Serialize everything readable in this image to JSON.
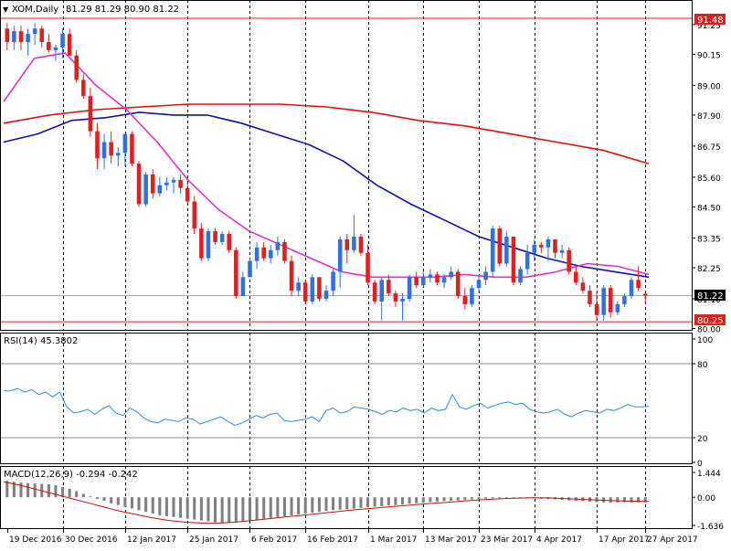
{
  "header": {
    "symbol_label": "XOM,Daily",
    "ohlc_label": "81.29 81.29 80.90 81.22"
  },
  "rsi_header": "RSI(14) 45.3802",
  "macd_header": "MACD(12,26,9) -0.294 -0.242",
  "price_labels": {
    "upper_line": "91.48",
    "current": "81.22",
    "lower_line": "80.25"
  },
  "colors": {
    "bull": "#3070e0",
    "bear": "#e02020",
    "ma_fast": "#e030d0",
    "ma_mid": "#1010b0",
    "ma_slow": "#e01010",
    "rsi_line": "#3a8ad8",
    "macd_hist": "#808080",
    "macd_signal": "#c01010",
    "level_line": "#e02020"
  },
  "chart_data": [
    {
      "type": "candlestick",
      "title": "XOM,Daily",
      "ylim": [
        80.0,
        91.48
      ],
      "y_ticks": [
        "91.25",
        "90.15",
        "89.00",
        "87.90",
        "86.75",
        "85.60",
        "84.50",
        "83.35",
        "82.25",
        "81.10",
        "80.00"
      ],
      "x_ticks": [
        "19 Dec 2016",
        "30 Dec 2016",
        "12 Jan 2017",
        "25 Jan 2017",
        "6 Feb 2017",
        "16 Feb 2017",
        "1 Mar 2017",
        "13 Mar 2017",
        "23 Mar 2017",
        "4 Apr 2017",
        "17 Apr 2017",
        "27 Apr 2017"
      ],
      "horizontal_lines": [
        91.48,
        80.25
      ],
      "current_price": 81.22,
      "candles": [
        [
          91.1,
          91.3,
          90.3,
          90.6
        ],
        [
          90.6,
          91.2,
          90.3,
          91.0
        ],
        [
          91.0,
          91.2,
          90.3,
          90.6
        ],
        [
          90.6,
          91.1,
          90.1,
          90.9
        ],
        [
          90.9,
          91.3,
          90.5,
          91.1
        ],
        [
          91.1,
          91.2,
          90.4,
          90.6
        ],
        [
          90.6,
          90.9,
          90.2,
          90.3
        ],
        [
          90.3,
          90.5,
          89.9,
          90.4
        ],
        [
          90.4,
          91.1,
          90.0,
          90.9
        ],
        [
          90.9,
          91.1,
          90.1,
          90.1
        ],
        [
          90.1,
          90.3,
          89.1,
          89.2
        ],
        [
          89.2,
          89.4,
          88.5,
          88.6
        ],
        [
          88.6,
          88.9,
          87.1,
          87.3
        ],
        [
          87.3,
          87.6,
          85.9,
          86.3
        ],
        [
          86.3,
          87.2,
          85.9,
          86.9
        ],
        [
          86.9,
          87.3,
          86.1,
          86.4
        ],
        [
          86.4,
          86.7,
          86.0,
          86.5
        ],
        [
          86.5,
          87.2,
          86.0,
          87.2
        ],
        [
          87.2,
          87.3,
          86.0,
          86.1
        ],
        [
          86.1,
          86.2,
          84.5,
          84.6
        ],
        [
          84.6,
          85.8,
          84.5,
          85.7
        ],
        [
          85.7,
          85.9,
          84.8,
          85.0
        ],
        [
          85.0,
          85.6,
          84.9,
          85.3
        ],
        [
          85.3,
          85.6,
          85.1,
          85.4
        ],
        [
          85.4,
          85.6,
          85.0,
          85.5
        ],
        [
          85.5,
          85.7,
          85.0,
          85.2
        ],
        [
          85.2,
          85.4,
          84.6,
          84.7
        ],
        [
          84.7,
          84.9,
          83.5,
          83.7
        ],
        [
          83.7,
          83.9,
          82.5,
          82.6
        ],
        [
          82.6,
          83.7,
          82.5,
          83.6
        ],
        [
          83.6,
          83.7,
          83.1,
          83.2
        ],
        [
          83.2,
          83.6,
          83.1,
          83.5
        ],
        [
          83.5,
          83.6,
          82.8,
          82.9
        ],
        [
          82.9,
          83.0,
          81.1,
          81.2
        ],
        [
          81.2,
          82.1,
          81.2,
          81.9
        ],
        [
          81.9,
          82.6,
          81.9,
          82.5
        ],
        [
          82.5,
          83.2,
          82.2,
          83.0
        ],
        [
          83.0,
          83.2,
          82.5,
          82.6
        ],
        [
          82.6,
          83.1,
          82.4,
          82.9
        ],
        [
          82.9,
          83.4,
          82.7,
          83.2
        ],
        [
          83.2,
          83.3,
          82.4,
          82.5
        ],
        [
          82.5,
          82.7,
          81.2,
          81.4
        ],
        [
          81.4,
          81.9,
          81.2,
          81.7
        ],
        [
          81.7,
          81.8,
          80.9,
          81.0
        ],
        [
          81.0,
          82.0,
          80.9,
          81.9
        ],
        [
          81.9,
          81.9,
          81.0,
          81.1
        ],
        [
          81.1,
          81.6,
          81.0,
          81.4
        ],
        [
          81.4,
          82.2,
          81.2,
          82.1
        ],
        [
          82.1,
          83.4,
          81.5,
          83.3
        ],
        [
          83.3,
          83.5,
          82.4,
          82.9
        ],
        [
          82.9,
          84.2,
          82.8,
          83.4
        ],
        [
          83.4,
          83.5,
          82.7,
          82.8
        ],
        [
          82.8,
          83.1,
          81.6,
          81.7
        ],
        [
          81.7,
          81.8,
          80.9,
          81.0
        ],
        [
          81.0,
          81.9,
          80.3,
          81.8
        ],
        [
          81.8,
          82.0,
          81.2,
          81.3
        ],
        [
          81.3,
          81.4,
          80.8,
          81.0
        ],
        [
          81.0,
          81.3,
          80.3,
          81.1
        ],
        [
          81.1,
          82.0,
          81.0,
          81.9
        ],
        [
          81.9,
          82.1,
          81.5,
          81.6
        ],
        [
          81.6,
          82.1,
          81.5,
          81.9
        ],
        [
          81.9,
          82.2,
          81.7,
          82.0
        ],
        [
          82.0,
          82.1,
          81.6,
          81.7
        ],
        [
          81.7,
          82.0,
          81.5,
          81.9
        ],
        [
          81.9,
          82.3,
          81.8,
          82.1
        ],
        [
          82.1,
          82.2,
          81.1,
          81.2
        ],
        [
          81.2,
          81.5,
          80.7,
          80.9
        ],
        [
          80.9,
          81.6,
          80.8,
          81.5
        ],
        [
          81.5,
          82.0,
          81.3,
          81.8
        ],
        [
          81.8,
          82.3,
          81.6,
          82.1
        ],
        [
          82.1,
          83.8,
          81.9,
          83.7
        ],
        [
          83.7,
          83.8,
          82.3,
          82.4
        ],
        [
          82.4,
          83.6,
          82.3,
          83.4
        ],
        [
          83.4,
          83.4,
          81.6,
          81.7
        ],
        [
          81.7,
          82.3,
          81.6,
          82.2
        ],
        [
          82.2,
          83.1,
          82.0,
          82.8
        ],
        [
          82.8,
          83.3,
          82.5,
          83.1
        ],
        [
          83.1,
          83.2,
          82.8,
          83.0
        ],
        [
          83.0,
          83.4,
          82.5,
          83.3
        ],
        [
          83.3,
          83.3,
          82.6,
          82.8
        ],
        [
          82.8,
          83.1,
          82.6,
          82.9
        ],
        [
          82.9,
          83.0,
          82.0,
          82.1
        ],
        [
          82.1,
          82.3,
          81.6,
          81.7
        ],
        [
          81.7,
          81.9,
          81.3,
          81.4
        ],
        [
          81.4,
          81.6,
          80.8,
          80.9
        ],
        [
          80.9,
          81.4,
          80.3,
          80.5
        ],
        [
          80.5,
          81.6,
          80.3,
          81.5
        ],
        [
          81.5,
          81.6,
          80.4,
          80.6
        ],
        [
          80.6,
          81.0,
          80.5,
          80.9
        ],
        [
          80.9,
          81.3,
          80.8,
          81.2
        ],
        [
          81.2,
          81.9,
          81.1,
          81.8
        ],
        [
          81.8,
          82.3,
          81.4,
          81.5
        ],
        [
          81.29,
          81.29,
          80.9,
          81.22
        ]
      ],
      "series": [
        {
          "name": "",
          "role": "ma_slow",
          "values": [
            87.6,
            87.9,
            88.1,
            88.2,
            88.3,
            88.3,
            88.3,
            88.2,
            88.0,
            87.7,
            87.5,
            87.2,
            86.9,
            86.6,
            86.1
          ]
        },
        {
          "name": "",
          "role": "ma_mid",
          "values": [
            86.9,
            87.2,
            87.7,
            87.8,
            88.0,
            87.9,
            87.9,
            87.6,
            87.2,
            86.8,
            86.2,
            85.3,
            84.6,
            84.0,
            83.4,
            83.0,
            82.6,
            82.3,
            82.1,
            81.9
          ]
        },
        {
          "name": "",
          "role": "ma_fast",
          "values": [
            88.4,
            90.0,
            90.2,
            89.0,
            88.1,
            86.9,
            85.5,
            84.4,
            83.6,
            83.1,
            82.6,
            82.1,
            81.9,
            81.9,
            81.9,
            82.0,
            81.9,
            81.9,
            82.1,
            82.4,
            82.3,
            82.0
          ]
        }
      ]
    },
    {
      "type": "line",
      "title": "RSI(14) 45.3802",
      "ylim": [
        0,
        100
      ],
      "y_ticks": [
        "100",
        "80",
        "20",
        "0"
      ],
      "levels": [
        80,
        20
      ],
      "series": [
        {
          "name": "",
          "values": [
            58,
            58,
            60,
            57,
            59,
            55,
            57,
            53,
            57,
            45,
            40,
            41,
            43,
            39,
            43,
            46,
            40,
            38,
            44,
            41,
            36,
            33,
            32,
            35,
            34,
            33,
            36,
            35,
            31,
            33,
            35,
            37,
            33,
            30,
            32,
            35,
            38,
            36,
            39,
            40,
            34,
            33,
            34,
            35,
            37,
            33,
            42,
            44,
            40,
            41,
            45,
            44,
            43,
            41,
            39,
            42,
            41,
            44,
            42,
            43,
            40,
            44,
            42,
            43,
            55,
            45,
            43,
            46,
            48,
            44,
            46,
            48,
            49,
            47,
            48,
            43,
            41,
            40,
            41,
            43,
            39,
            37,
            40,
            42,
            41,
            40,
            43,
            42,
            44,
            47,
            45,
            45,
            45.38
          ]
        }
      ]
    },
    {
      "type": "bar",
      "title": "MACD(12,26,9) -0.294 -0.242",
      "ylim": [
        -1.636,
        1.444
      ],
      "y_ticks": [
        "1.444",
        "0.00",
        "-1.636"
      ],
      "series": [
        {
          "name": "",
          "role": "histogram",
          "values": [
            0.95,
            0.9,
            0.85,
            0.82,
            0.8,
            0.78,
            0.75,
            0.7,
            0.6,
            0.5,
            0.35,
            0.2,
            0.05,
            -0.1,
            -0.2,
            -0.35,
            -0.45,
            -0.55,
            -0.65,
            -0.75,
            -0.85,
            -0.95,
            -1.05,
            -1.1,
            -1.15,
            -1.2,
            -1.25,
            -1.3,
            -1.35,
            -1.4,
            -1.45,
            -1.5,
            -1.48,
            -1.45,
            -1.4,
            -1.35,
            -1.3,
            -1.25,
            -1.2,
            -1.15,
            -1.1,
            -1.05,
            -1.0,
            -0.95,
            -0.9,
            -0.85,
            -0.8,
            -0.75,
            -0.72,
            -0.7,
            -0.66,
            -0.62,
            -0.58,
            -0.55,
            -0.52,
            -0.48,
            -0.45,
            -0.42,
            -0.38,
            -0.35,
            -0.32,
            -0.28,
            -0.25,
            -0.22,
            -0.2,
            -0.18,
            -0.15,
            -0.12,
            -0.1,
            -0.08,
            -0.06,
            -0.05,
            -0.04,
            -0.03,
            -0.02,
            -0.03,
            -0.05,
            -0.08,
            -0.1,
            -0.12,
            -0.15,
            -0.18,
            -0.2,
            -0.22,
            -0.25,
            -0.28,
            -0.3,
            -0.32,
            -0.3,
            -0.29,
            -0.29,
            -0.29,
            -0.294
          ]
        },
        {
          "name": "",
          "role": "signal",
          "values": [
            0.9,
            0.7,
            0.45,
            0.2,
            -0.05,
            -0.3,
            -0.55,
            -0.8,
            -1.0,
            -1.2,
            -1.35,
            -1.45,
            -1.5,
            -1.5,
            -1.45,
            -1.35,
            -1.25,
            -1.15,
            -1.05,
            -0.95,
            -0.85,
            -0.75,
            -0.67,
            -0.58,
            -0.5,
            -0.42,
            -0.35,
            -0.28,
            -0.2,
            -0.14,
            -0.09,
            -0.05,
            -0.03,
            -0.04,
            -0.08,
            -0.12,
            -0.17,
            -0.2,
            -0.23,
            -0.242
          ]
        }
      ]
    }
  ]
}
